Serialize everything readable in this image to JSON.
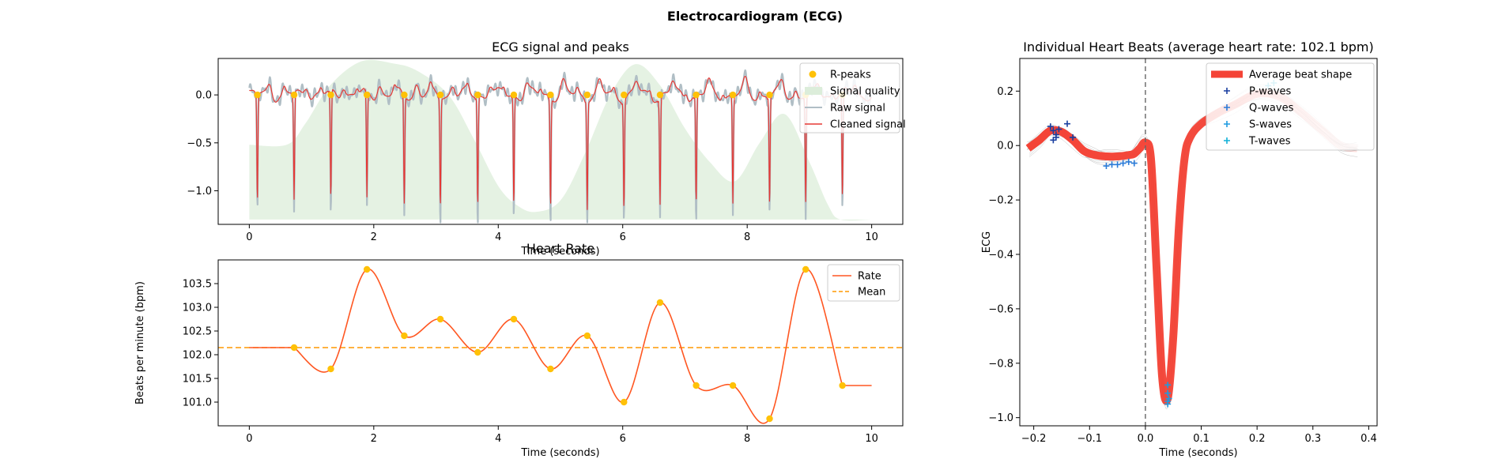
{
  "figure": {
    "title": "Electrocardiogram (ECG)"
  },
  "chart_data": [
    {
      "id": "ecg",
      "type": "line",
      "title": "ECG signal and peaks",
      "xlabel": "Time (seconds)",
      "ylabel": "",
      "xlim": [
        -0.5,
        10.5
      ],
      "ylim": [
        -1.35,
        0.38
      ],
      "xticks": [
        0,
        2,
        4,
        6,
        8,
        10
      ],
      "yticks": [
        0.0,
        -0.5,
        -1.0
      ],
      "ytick_labels": [
        "0.0",
        "−0.5",
        "−1.0"
      ],
      "legend": [
        "R-peaks",
        "Signal quality",
        "Raw signal",
        "Cleaned signal"
      ],
      "legend_position": "top-right",
      "colors": {
        "r_peaks": "#FFC107",
        "quality": "#DCEDDA",
        "raw": "#B0BEC5",
        "clean": "#E53935"
      },
      "r_peak_times": [
        0.13,
        0.72,
        1.31,
        1.89,
        2.49,
        3.07,
        3.67,
        4.25,
        4.84,
        5.43,
        6.02,
        6.6,
        7.18,
        7.77,
        8.36,
        8.94,
        9.53
      ],
      "signal_quality": {
        "x": [
          0,
          0.6,
          0.9,
          1.3,
          1.8,
          2.3,
          2.7,
          3.2,
          3.6,
          4.0,
          4.3,
          4.6,
          5.0,
          5.4,
          5.8,
          6.2,
          6.6,
          7.0,
          7.4,
          7.8,
          8.2,
          8.6,
          9.0,
          9.3,
          9.5,
          10.0
        ],
        "y": [
          -0.52,
          -0.52,
          -0.3,
          0.1,
          0.35,
          0.33,
          0.25,
          0.0,
          -0.45,
          -0.95,
          -1.15,
          -1.22,
          -1.1,
          -0.6,
          0.0,
          0.32,
          0.1,
          -0.35,
          -0.7,
          -0.9,
          -0.5,
          -0.2,
          -0.7,
          -1.15,
          -1.3,
          -1.3
        ]
      }
    },
    {
      "id": "rate",
      "type": "line",
      "title": "Heart Rate",
      "xlabel": "Time (seconds)",
      "ylabel": "Beats per minute (bpm)",
      "xlim": [
        -0.5,
        10.5
      ],
      "ylim": [
        100.5,
        104.0
      ],
      "xticks": [
        0,
        2,
        4,
        6,
        8,
        10
      ],
      "yticks": [
        101.0,
        101.5,
        102.0,
        102.5,
        103.0,
        103.5
      ],
      "legend": [
        "Rate",
        "Mean"
      ],
      "legend_position": "top-right",
      "mean": 102.15,
      "colors": {
        "rate": "#FF5722",
        "mean": "#FF9800",
        "points": "#FFC107"
      },
      "x": [
        0.72,
        1.31,
        1.89,
        2.49,
        3.07,
        3.67,
        4.25,
        4.84,
        5.43,
        6.02,
        6.6,
        7.18,
        7.77,
        8.36,
        8.94,
        9.53
      ],
      "y": [
        102.15,
        101.7,
        103.8,
        102.4,
        102.75,
        102.05,
        102.75,
        101.7,
        102.4,
        101.0,
        103.1,
        101.35,
        101.35,
        100.65,
        103.8,
        101.35
      ],
      "start": {
        "x": 0,
        "y": 102.15
      },
      "end": {
        "x": 10,
        "y": 101.35
      }
    },
    {
      "id": "beats",
      "type": "line",
      "title": "Individual Heart Beats (average heart rate: 102.1 bpm)",
      "xlabel": "Time (seconds)",
      "ylabel": "ECG",
      "xlim": [
        -0.225,
        0.415
      ],
      "ylim": [
        -1.03,
        0.32
      ],
      "xticks": [
        -0.2,
        -0.1,
        0.0,
        0.1,
        0.2,
        0.3,
        0.4
      ],
      "yticks": [
        0.2,
        0.0,
        -0.2,
        -0.4,
        -0.6,
        -0.8,
        -1.0
      ],
      "xtick_labels": [
        "−0.2",
        "−0.1",
        "0.0",
        "0.1",
        "0.2",
        "0.3",
        "0.4"
      ],
      "ytick_labels": [
        "0.2",
        "0.0",
        "−0.2",
        "−0.4",
        "−0.6",
        "−0.8",
        "−1.0"
      ],
      "legend": [
        "Average beat shape",
        "P-waves",
        "Q-waves",
        "S-waves",
        "T-waves"
      ],
      "legend_position": "top-right",
      "colors": {
        "avg": "#F44336",
        "p": "#1A3FA0",
        "q": "#2A7BD8",
        "s": "#1E9BE0",
        "t": "#12B0D8"
      },
      "average_shape": {
        "x": [
          -0.21,
          -0.19,
          -0.17,
          -0.15,
          -0.13,
          -0.11,
          -0.09,
          -0.07,
          -0.05,
          -0.03,
          -0.02,
          -0.01,
          0.0,
          0.01,
          0.02,
          0.03,
          0.04,
          0.05,
          0.06,
          0.07,
          0.08,
          0.1,
          0.13,
          0.16,
          0.2,
          0.24,
          0.28,
          0.32,
          0.35,
          0.38
        ],
        "y": [
          -0.01,
          0.02,
          0.055,
          0.05,
          0.02,
          -0.02,
          -0.035,
          -0.04,
          -0.04,
          -0.035,
          -0.03,
          -0.01,
          0.01,
          -0.05,
          -0.45,
          -0.85,
          -0.93,
          -0.7,
          -0.3,
          -0.05,
          0.03,
          0.08,
          0.12,
          0.15,
          0.19,
          0.18,
          0.12,
          0.05,
          0.0,
          -0.01
        ]
      },
      "p_waves": [
        [
          -0.17,
          0.07
        ],
        [
          -0.165,
          0.055
        ],
        [
          -0.16,
          0.04
        ],
        [
          -0.155,
          0.06
        ],
        [
          -0.165,
          0.02
        ],
        [
          -0.14,
          0.08
        ],
        [
          -0.13,
          0.03
        ],
        [
          -0.16,
          0.03
        ]
      ],
      "q_waves": [
        [
          -0.07,
          -0.075
        ],
        [
          -0.06,
          -0.07
        ],
        [
          -0.05,
          -0.07
        ],
        [
          -0.04,
          -0.065
        ],
        [
          -0.03,
          -0.06
        ],
        [
          -0.02,
          -0.065
        ]
      ],
      "s_waves": [
        [
          0.04,
          -0.88
        ],
        [
          0.04,
          -0.91
        ],
        [
          0.042,
          -0.93
        ],
        [
          0.04,
          -0.95
        ],
        [
          0.04,
          -0.94
        ]
      ],
      "t_waves": [
        [
          0.22,
          0.22
        ],
        [
          0.23,
          0.23
        ]
      ]
    }
  ]
}
